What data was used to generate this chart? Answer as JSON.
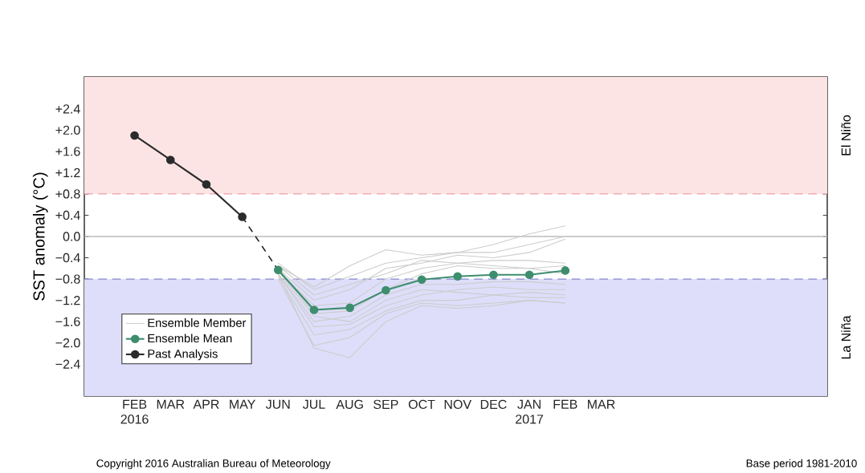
{
  "chart_data": {
    "type": "line",
    "ylabel": "SST anomaly (°C)",
    "categories": [
      "FEB 2016",
      "MAR",
      "APR",
      "MAY",
      "JUN",
      "JUL",
      "AUG",
      "SEP",
      "OCT",
      "NOV",
      "DEC",
      "JAN 2017",
      "FEB",
      "MAR"
    ],
    "ylim": [
      -3,
      3
    ],
    "yticks": [
      {
        "value": -2.4,
        "label": "−2.4"
      },
      {
        "value": -2.0,
        "label": "−2.0"
      },
      {
        "value": -1.6,
        "label": "−1.6"
      },
      {
        "value": -1.2,
        "label": "−1.2"
      },
      {
        "value": -0.8,
        "label": "−0.8"
      },
      {
        "value": -0.4,
        "label": "−0.4"
      },
      {
        "value": 0,
        "label": "0.0"
      },
      {
        "value": 0.4,
        "label": "+0.4"
      },
      {
        "value": 0.8,
        "label": "+0.8"
      },
      {
        "value": 1.2,
        "label": "+1.2"
      },
      {
        "value": 1.6,
        "label": "+1.6"
      },
      {
        "value": 2.0,
        "label": "+2.0"
      },
      {
        "value": 2.4,
        "label": "+2.4"
      }
    ],
    "grid": false,
    "legend": "bottom left",
    "series": [
      {
        "name": "Ensemble Member",
        "color": "#cccccc",
        "marker": "none",
        "values": [
          null,
          null,
          null,
          null,
          -0.55,
          -0.95,
          -0.55,
          -0.25,
          -0.35,
          -0.3,
          -0.15,
          0.05,
          0.2,
          null
        ]
      },
      {
        "color": "#cccccc",
        "marker": "none",
        "values": [
          null,
          null,
          null,
          null,
          -0.5,
          -1.0,
          -0.75,
          -0.5,
          -0.4,
          -0.3,
          -0.3,
          -0.15,
          0.0,
          null
        ]
      },
      {
        "color": "#cccccc",
        "marker": "none",
        "values": [
          null,
          null,
          null,
          null,
          -0.6,
          -1.2,
          -1.0,
          -0.6,
          -0.5,
          -0.35,
          -0.4,
          -0.3,
          -0.05,
          null
        ]
      },
      {
        "color": "#cccccc",
        "marker": "none",
        "values": [
          null,
          null,
          null,
          null,
          -0.65,
          -1.3,
          -1.25,
          -0.8,
          -0.6,
          -0.5,
          -0.45,
          -0.45,
          -0.5,
          null
        ]
      },
      {
        "color": "#cccccc",
        "marker": "none",
        "values": [
          null,
          null,
          null,
          null,
          -0.6,
          -1.45,
          -1.4,
          -1.0,
          -0.7,
          -0.55,
          -0.6,
          -0.6,
          -0.55,
          null
        ]
      },
      {
        "color": "#cccccc",
        "marker": "none",
        "values": [
          null,
          null,
          null,
          null,
          -0.7,
          -1.6,
          -1.5,
          -1.1,
          -0.9,
          -0.9,
          -0.85,
          -0.85,
          -0.9,
          null
        ]
      },
      {
        "color": "#cccccc",
        "marker": "none",
        "values": [
          null,
          null,
          null,
          null,
          -0.7,
          -1.7,
          -1.65,
          -1.3,
          -1.1,
          -1.0,
          -0.95,
          -1.0,
          -1.0,
          null
        ]
      },
      {
        "color": "#cccccc",
        "marker": "none",
        "values": [
          null,
          null,
          null,
          null,
          -0.75,
          -1.85,
          -1.75,
          -1.4,
          -1.2,
          -1.2,
          -1.1,
          -1.15,
          -1.15,
          null
        ]
      },
      {
        "color": "#cccccc",
        "marker": "none",
        "values": [
          null,
          null,
          null,
          null,
          -0.8,
          -2.05,
          -1.9,
          -1.45,
          -1.25,
          -1.3,
          -1.25,
          -1.2,
          -1.25,
          null
        ]
      },
      {
        "color": "#cccccc",
        "marker": "none",
        "values": [
          null,
          null,
          null,
          null,
          -0.7,
          -2.1,
          -2.28,
          -1.6,
          -1.3,
          -1.35,
          -1.3,
          -1.2,
          -1.25,
          null
        ]
      },
      {
        "color": "#cccccc",
        "marker": "none",
        "values": [
          null,
          null,
          null,
          null,
          -0.55,
          -1.1,
          -0.9,
          -0.7,
          -0.45,
          -0.5,
          -0.55,
          -0.6,
          -0.7,
          null
        ]
      },
      {
        "color": "#cccccc",
        "marker": "none",
        "values": [
          null,
          null,
          null,
          null,
          -0.65,
          -1.5,
          -1.6,
          -1.2,
          -1.0,
          -1.05,
          -1.1,
          -1.05,
          -1.1,
          null
        ]
      },
      {
        "color": "#222222",
        "marker": "none",
        "line_style": "dashed",
        "values": [
          null,
          null,
          null,
          0.37,
          -0.63,
          null,
          null,
          null,
          null,
          null,
          null,
          null,
          null,
          null
        ]
      },
      {
        "name": "Ensemble Mean",
        "color": "#3e8e6e",
        "marker": "circle",
        "values": [
          null,
          null,
          null,
          null,
          -0.63,
          -1.38,
          -1.34,
          -1.01,
          -0.81,
          -0.75,
          -0.72,
          -0.72,
          -0.64,
          null
        ]
      },
      {
        "name": "Past Analysis",
        "color": "#2b2b2b",
        "marker": "circle",
        "values": [
          1.9,
          1.44,
          0.98,
          0.37,
          null,
          null,
          null,
          null,
          null,
          null,
          null,
          null,
          null,
          null
        ]
      }
    ],
    "ref_lines": [
      {
        "axis": "y",
        "value": 0,
        "color": "#bbbbbb",
        "line_style": "solid"
      },
      {
        "axis": "y",
        "value": 0.8,
        "color": "#f0a0a8",
        "line_style": "dashed"
      },
      {
        "axis": "y",
        "value": -0.8,
        "color": "#8888cc",
        "line_style": "dashed"
      }
    ],
    "bands": [
      {
        "axis": "y",
        "from": 0.8,
        "to": 3,
        "label": "El Niño",
        "color": "#fde4e4"
      },
      {
        "axis": "y",
        "from": -3,
        "to": -0.8,
        "label": "La Niña",
        "color": "#dedefa"
      }
    ],
    "annotations": [
      "Copyright 2016 Australian Bureau of Meteorology",
      "Base period 1981-2010"
    ]
  }
}
